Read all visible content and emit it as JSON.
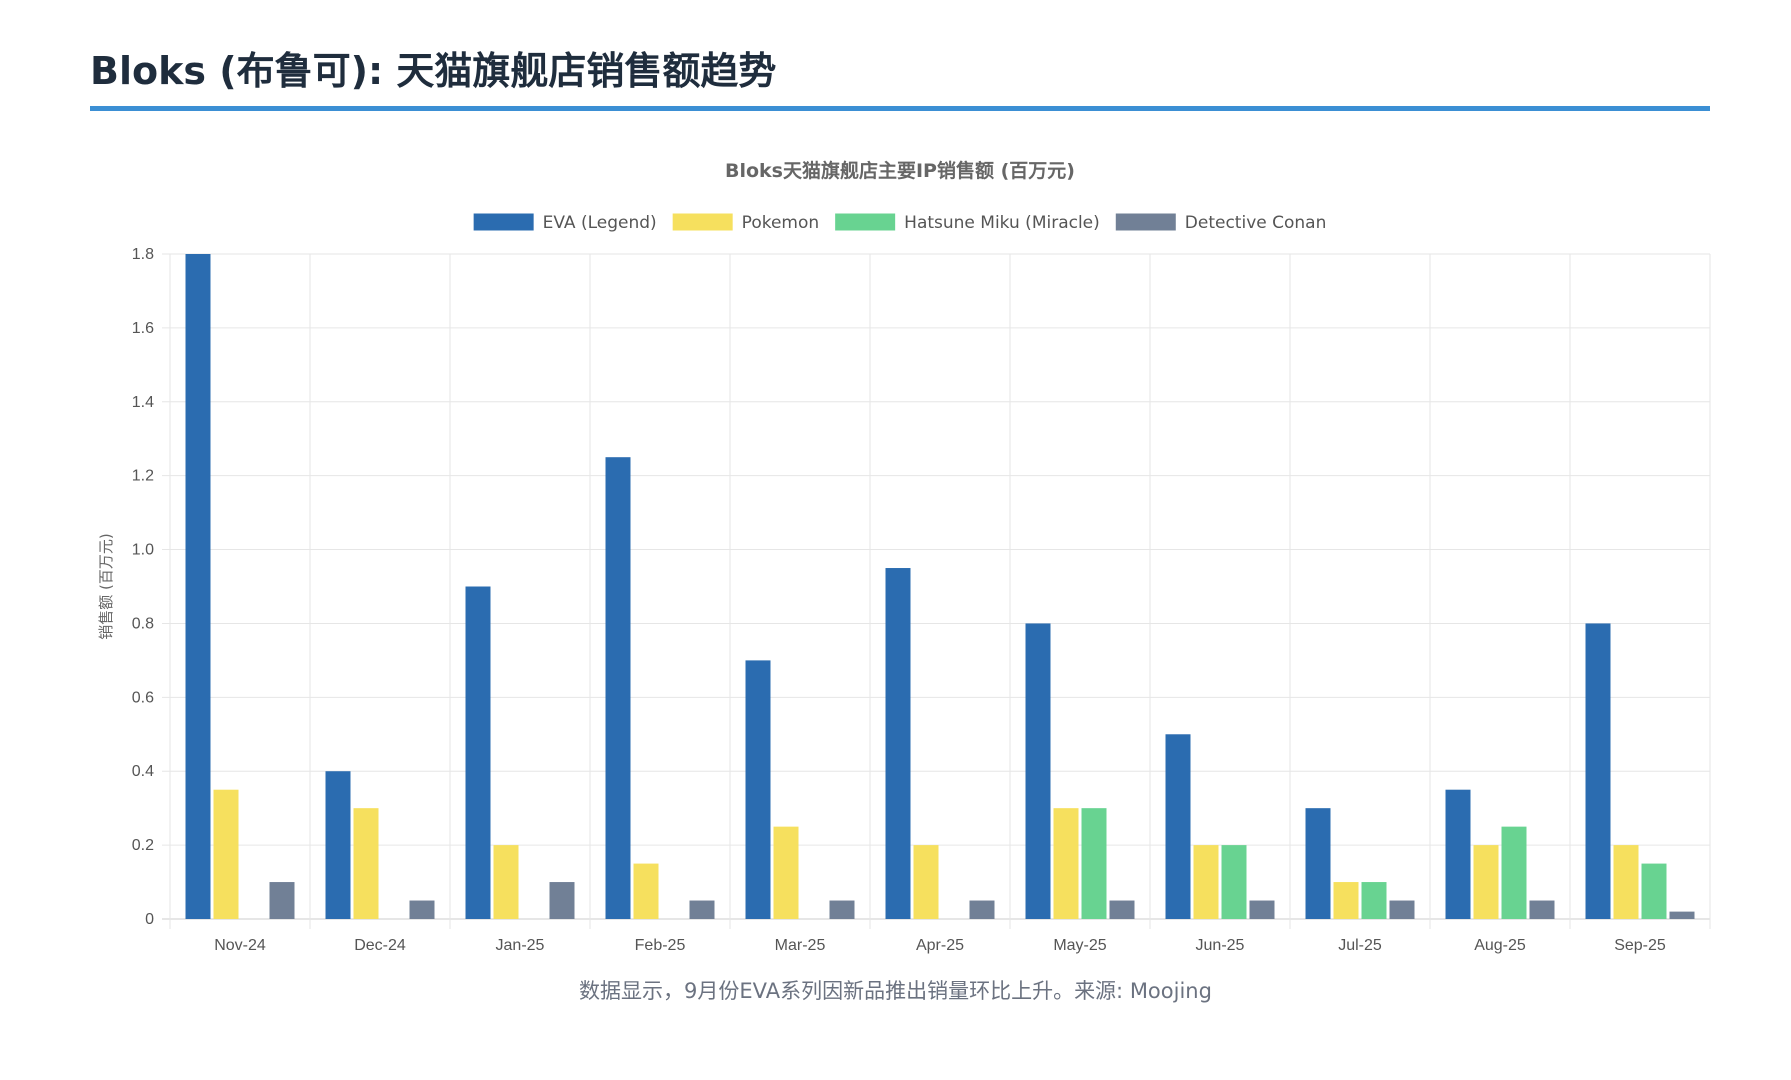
{
  "page": {
    "title": "Bloks (布鲁可): 天猫旗舰店销售额趋势",
    "footnote": "数据显示，9月份EVA系列因新品推出销量环比上升。来源: Moojing",
    "accent_color": "#3b8fd4"
  },
  "chart_data": {
    "type": "bar",
    "title": "Bloks天猫旗舰店主要IP销售额 (百万元)",
    "xlabel": "",
    "ylabel": "销售额 (百万元)",
    "ylim": [
      0,
      1.8
    ],
    "yticks": [
      "0",
      "0.2",
      "0.4",
      "0.6",
      "0.8",
      "1.0",
      "1.2",
      "1.4",
      "1.6",
      "1.8"
    ],
    "ytick_values": [
      0,
      0.2,
      0.4,
      0.6,
      0.8,
      1.0,
      1.2,
      1.4,
      1.6,
      1.8
    ],
    "grid": true,
    "legend_position": "top-center",
    "categories": [
      "Nov-24",
      "Dec-24",
      "Jan-25",
      "Feb-25",
      "Mar-25",
      "Apr-25",
      "May-25",
      "Jun-25",
      "Jul-25",
      "Aug-25",
      "Sep-25"
    ],
    "series": [
      {
        "name": "EVA (Legend)",
        "color": "#2b6cb0",
        "values": [
          1.8,
          0.4,
          0.9,
          1.25,
          0.7,
          0.95,
          0.8,
          0.5,
          0.3,
          0.35,
          0.8
        ]
      },
      {
        "name": "Pokemon",
        "color": "#f6e05e",
        "values": [
          0.35,
          0.3,
          0.2,
          0.15,
          0.25,
          0.2,
          0.3,
          0.2,
          0.1,
          0.2,
          0.2
        ]
      },
      {
        "name": "Hatsune Miku (Miracle)",
        "color": "#68d391",
        "values": [
          0,
          0,
          0,
          0,
          0,
          0,
          0.3,
          0.2,
          0.1,
          0.25,
          0.15
        ]
      },
      {
        "name": "Detective Conan",
        "color": "#718096",
        "values": [
          0.1,
          0.05,
          0.1,
          0.05,
          0.05,
          0.05,
          0.05,
          0.05,
          0.05,
          0.05,
          0.02
        ]
      }
    ]
  }
}
